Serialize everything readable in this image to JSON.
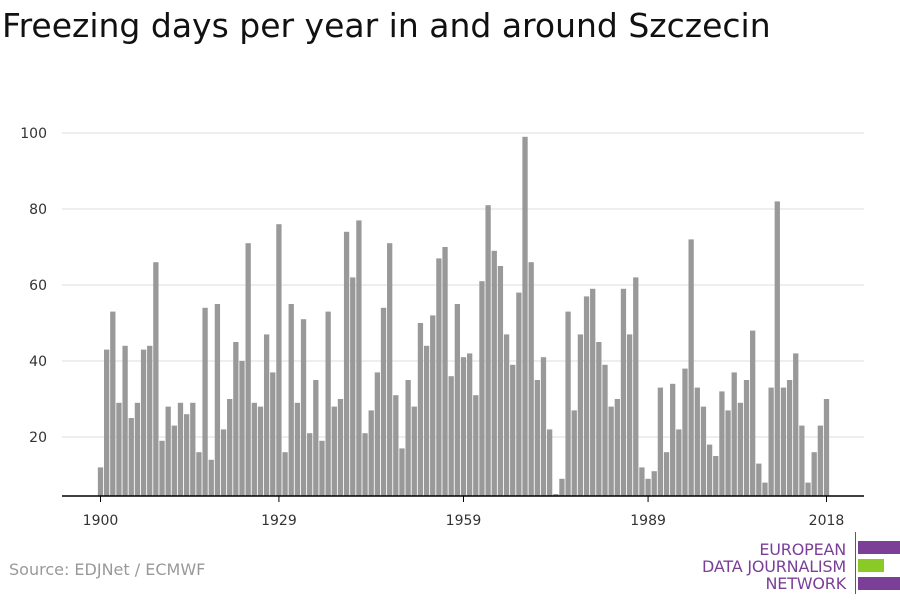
{
  "title": "Freezing days per year in and around Szczecin",
  "source": "Source: EDJNet / ECMWF",
  "logo": {
    "line1": "EUROPEAN",
    "line2": "DATA JOURNALISM",
    "line3": "NETWORK",
    "colors": {
      "primary": "#7b3f98",
      "accent": "#8ac926"
    }
  },
  "chart_data": {
    "type": "bar",
    "title": "Freezing days per year in and around Szczecin",
    "xlabel": "",
    "ylabel": "",
    "x_start": 1900,
    "x_end": 2018,
    "xticks": [
      1900,
      1929,
      1959,
      1989,
      2018
    ],
    "yticks": [
      20,
      40,
      60,
      80,
      100
    ],
    "ylim": [
      5,
      102
    ],
    "grid": true,
    "bar_color": "#999999",
    "values": [
      12,
      43,
      53,
      29,
      44,
      25,
      29,
      43,
      44,
      66,
      19,
      28,
      23,
      29,
      26,
      29,
      16,
      54,
      14,
      55,
      22,
      30,
      45,
      40,
      71,
      29,
      28,
      47,
      37,
      76,
      16,
      55,
      29,
      51,
      21,
      35,
      19,
      53,
      28,
      30,
      74,
      62,
      77,
      21,
      27,
      37,
      54,
      71,
      31,
      17,
      35,
      28,
      50,
      44,
      52,
      67,
      70,
      36,
      55,
      41,
      42,
      31,
      61,
      81,
      69,
      65,
      47,
      39,
      58,
      99,
      66,
      35,
      41,
      22,
      5,
      9,
      53,
      27,
      47,
      57,
      59,
      45,
      39,
      28,
      30,
      59,
      47,
      62,
      12,
      9,
      11,
      33,
      16,
      34,
      22,
      38,
      72,
      33,
      28,
      18,
      15,
      32,
      27,
      37,
      29,
      35,
      48,
      13,
      8,
      33,
      82,
      33,
      35,
      42,
      23,
      8,
      16,
      23,
      30
    ]
  }
}
